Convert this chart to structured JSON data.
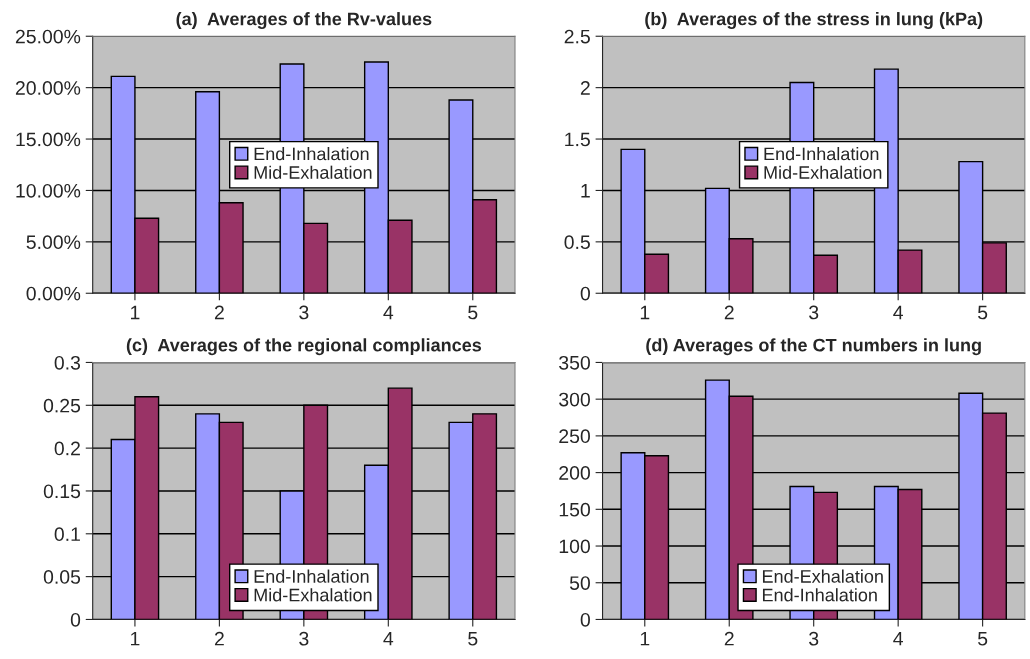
{
  "chart_data": [
    {
      "type": "bar",
      "title": "(a)  Averages of the Rv-values",
      "categories": [
        "1",
        "2",
        "3",
        "4",
        "5"
      ],
      "series": [
        {
          "name": "End-Inhalation",
          "color": "#9999ff",
          "values": [
            21.1,
            19.6,
            22.3,
            22.5,
            18.8
          ]
        },
        {
          "name": "Mid-Exhalation",
          "color": "#993366",
          "values": [
            7.3,
            8.8,
            6.8,
            7.1,
            9.1
          ]
        }
      ],
      "ylim": [
        0,
        25
      ],
      "yticks": [
        {
          "value": 0,
          "label": "0.00%"
        },
        {
          "value": 5,
          "label": "5.00%"
        },
        {
          "value": 10,
          "label": "10.00%"
        },
        {
          "value": 15,
          "label": "15.00%"
        },
        {
          "value": 20,
          "label": "20.00%"
        },
        {
          "value": 25,
          "label": "25.00%"
        }
      ],
      "grid": "y",
      "legend": "center"
    },
    {
      "type": "bar",
      "title": "(b)  Averages of the stress in lung (kPa)",
      "categories": [
        "1",
        "2",
        "3",
        "4",
        "5"
      ],
      "series": [
        {
          "name": "End-Inhalation",
          "color": "#9999ff",
          "values": [
            1.4,
            1.02,
            2.05,
            2.18,
            1.28
          ]
        },
        {
          "name": "Mid-Exhalation",
          "color": "#993366",
          "values": [
            0.38,
            0.53,
            0.37,
            0.42,
            0.49
          ]
        }
      ],
      "ylim": [
        0,
        2.5
      ],
      "yticks": [
        0,
        0.5,
        1,
        1.5,
        2,
        2.5
      ],
      "grid": "y",
      "legend": "center"
    },
    {
      "type": "bar",
      "title": "(c)  Averages of the regional compliances",
      "categories": [
        "1",
        "2",
        "3",
        "4",
        "5"
      ],
      "series": [
        {
          "name": "End-Inhalation",
          "color": "#9999ff",
          "values": [
            0.21,
            0.24,
            0.15,
            0.18,
            0.23
          ]
        },
        {
          "name": "Mid-Exhalation",
          "color": "#993366",
          "values": [
            0.26,
            0.23,
            0.25,
            0.27,
            0.24
          ]
        }
      ],
      "ylim": [
        0,
        0.3
      ],
      "yticks": [
        0,
        0.05,
        0.1,
        0.15,
        0.2,
        0.25,
        0.3
      ],
      "grid": "y",
      "legend": "lower center"
    },
    {
      "type": "bar",
      "title": "(d) Averages of the CT numbers in lung",
      "categories": [
        "1",
        "2",
        "3",
        "4",
        "5"
      ],
      "series": [
        {
          "name": "End-Exhalation",
          "color": "#9999ff",
          "values": [
            227,
            326,
            181,
            181,
            308
          ]
        },
        {
          "name": "End-Inhalation",
          "color": "#993366",
          "values": [
            223,
            304,
            173,
            177,
            281
          ]
        }
      ],
      "ylim": [
        0,
        350
      ],
      "yticks": [
        0,
        50,
        100,
        150,
        200,
        250,
        300,
        350
      ],
      "grid": "y",
      "legend": "lower center"
    }
  ]
}
